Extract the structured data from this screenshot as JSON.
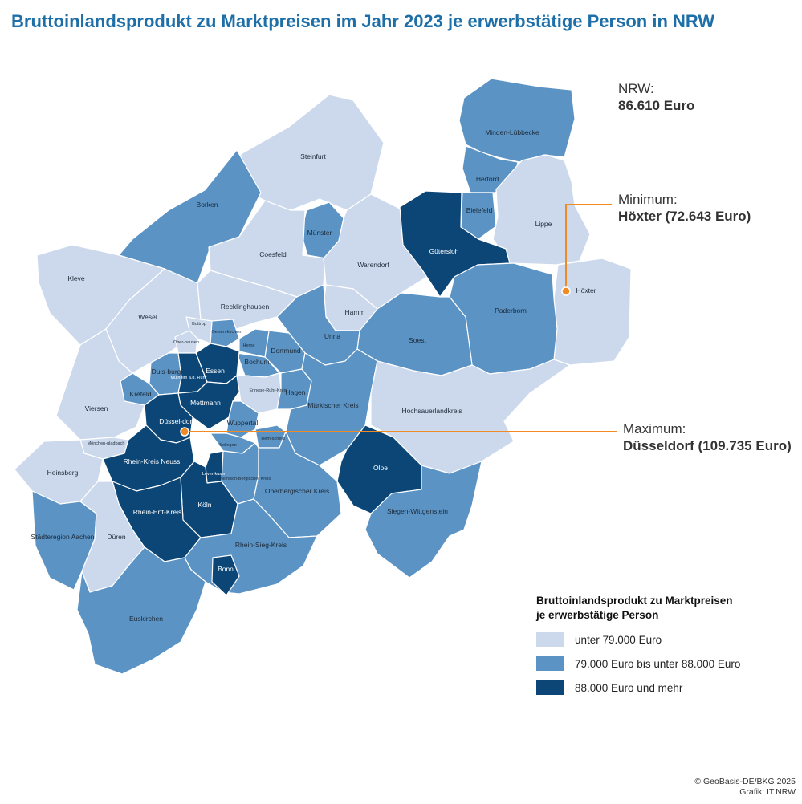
{
  "title": "Bruttoinlandsprodukt zu Marktpreisen im Jahr 2023 je erwerbstätige Person in NRW",
  "colors": {
    "low": "#ccd9ec",
    "mid": "#5a93c4",
    "high": "#0b4677",
    "accent": "#f08a24",
    "title": "#1e6fa8"
  },
  "summary": {
    "label": "NRW:",
    "value": "86.610 Euro"
  },
  "minimum": {
    "label": "Minimum:",
    "value": "Höxter (72.643 Euro)"
  },
  "maximum": {
    "label": "Maximum:",
    "value": "Düsseldorf (109.735 Euro)"
  },
  "legend": {
    "title_line1": "Bruttoinlandsprodukt zu Marktpreisen",
    "title_line2": "je erwerbstätige Person",
    "items": [
      {
        "label": "unter 79.000 Euro",
        "class": "low"
      },
      {
        "label": "79.000 Euro bis unter 88.000 Euro",
        "class": "mid"
      },
      {
        "label": "88.000 Euro und mehr",
        "class": "high"
      }
    ]
  },
  "credits": {
    "line1": "© GeoBasis-DE/BKG 2025",
    "line2": "Grafik: IT.NRW"
  },
  "regions": [
    {
      "name": "Steinfurt",
      "class": "low"
    },
    {
      "name": "Minden-Lübbecke",
      "class": "mid"
    },
    {
      "name": "Herford",
      "class": "mid"
    },
    {
      "name": "Bielefeld",
      "class": "mid"
    },
    {
      "name": "Lippe",
      "class": "low"
    },
    {
      "name": "Borken",
      "class": "mid"
    },
    {
      "name": "Münster",
      "class": "mid"
    },
    {
      "name": "Coesfeld",
      "class": "low"
    },
    {
      "name": "Warendorf",
      "class": "low"
    },
    {
      "name": "Gütersloh",
      "class": "high"
    },
    {
      "name": "Höxter",
      "class": "low"
    },
    {
      "name": "Paderborn",
      "class": "mid"
    },
    {
      "name": "Kleve",
      "class": "low"
    },
    {
      "name": "Wesel",
      "class": "low"
    },
    {
      "name": "Recklinghausen",
      "class": "low"
    },
    {
      "name": "Hamm",
      "class": "low"
    },
    {
      "name": "Soest",
      "class": "mid"
    },
    {
      "name": "Unna",
      "class": "mid"
    },
    {
      "name": "Dortmund",
      "class": "mid"
    },
    {
      "name": "Bochum",
      "class": "mid"
    },
    {
      "name": "Herne",
      "class": "mid"
    },
    {
      "name": "Gelsen-kirchen",
      "class": "mid"
    },
    {
      "name": "Bottrop",
      "class": "low"
    },
    {
      "name": "Ober-hausen",
      "class": "low"
    },
    {
      "name": "Duis-burg",
      "class": "mid"
    },
    {
      "name": "Essen",
      "class": "high"
    },
    {
      "name": "Mülheim a.d. Ruhr",
      "class": "high"
    },
    {
      "name": "Krefeld",
      "class": "mid"
    },
    {
      "name": "Mettmann",
      "class": "high"
    },
    {
      "name": "Ennepe-Ruhr-Kreis",
      "class": "low"
    },
    {
      "name": "Hagen",
      "class": "mid"
    },
    {
      "name": "Märkischer Kreis",
      "class": "mid"
    },
    {
      "name": "Hochsauerlandkreis",
      "class": "low"
    },
    {
      "name": "Viersen",
      "class": "low"
    },
    {
      "name": "Düssel-dorf",
      "class": "high"
    },
    {
      "name": "Wuppertal",
      "class": "mid"
    },
    {
      "name": "Rem-scheid",
      "class": "mid"
    },
    {
      "name": "Solingen",
      "class": "mid"
    },
    {
      "name": "Mönchen-gladbach",
      "class": "low"
    },
    {
      "name": "Heinsberg",
      "class": "low"
    },
    {
      "name": "Rhein-Kreis Neuss",
      "class": "high"
    },
    {
      "name": "Lever-kusen",
      "class": "high"
    },
    {
      "name": "Rheinisch-Bergischer Kreis",
      "class": "mid"
    },
    {
      "name": "Oberbergischer Kreis",
      "class": "mid"
    },
    {
      "name": "Olpe",
      "class": "high"
    },
    {
      "name": "Siegen-Wittgenstein",
      "class": "mid"
    },
    {
      "name": "Köln",
      "class": "high"
    },
    {
      "name": "Rhein-Erft-Kreis",
      "class": "high"
    },
    {
      "name": "Städteregion Aachen",
      "class": "mid"
    },
    {
      "name": "Düren",
      "class": "low"
    },
    {
      "name": "Rhein-Sieg-Kreis",
      "class": "mid"
    },
    {
      "name": "Bonn",
      "class": "high"
    },
    {
      "name": "Euskirchen",
      "class": "mid"
    }
  ]
}
